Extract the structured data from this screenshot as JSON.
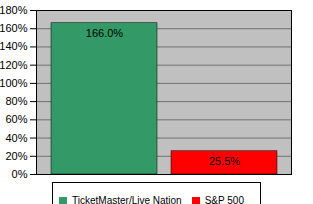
{
  "chart_data": {
    "type": "bar",
    "categories": [
      "TicketMaster/Live Nation",
      "S&P 500"
    ],
    "values": [
      166.0,
      25.5
    ],
    "value_labels": [
      "166.0%",
      "25.5%"
    ],
    "colors": [
      "#339966",
      "#ff0000"
    ],
    "ylim": [
      0,
      180
    ],
    "yticks": [
      {
        "value": 0,
        "label": "0%"
      },
      {
        "value": 20,
        "label": "20%"
      },
      {
        "value": 40,
        "label": "40%"
      },
      {
        "value": 60,
        "label": "60%"
      },
      {
        "value": 80,
        "label": "80%"
      },
      {
        "value": 100,
        "label": "100%"
      },
      {
        "value": 120,
        "label": "120%"
      },
      {
        "value": 140,
        "label": "140%"
      },
      {
        "value": 160,
        "label": "160%"
      },
      {
        "value": 180,
        "label": "180%"
      }
    ],
    "grid": true,
    "data_labels": true,
    "legend": "bottom",
    "tick_labels": "y"
  }
}
